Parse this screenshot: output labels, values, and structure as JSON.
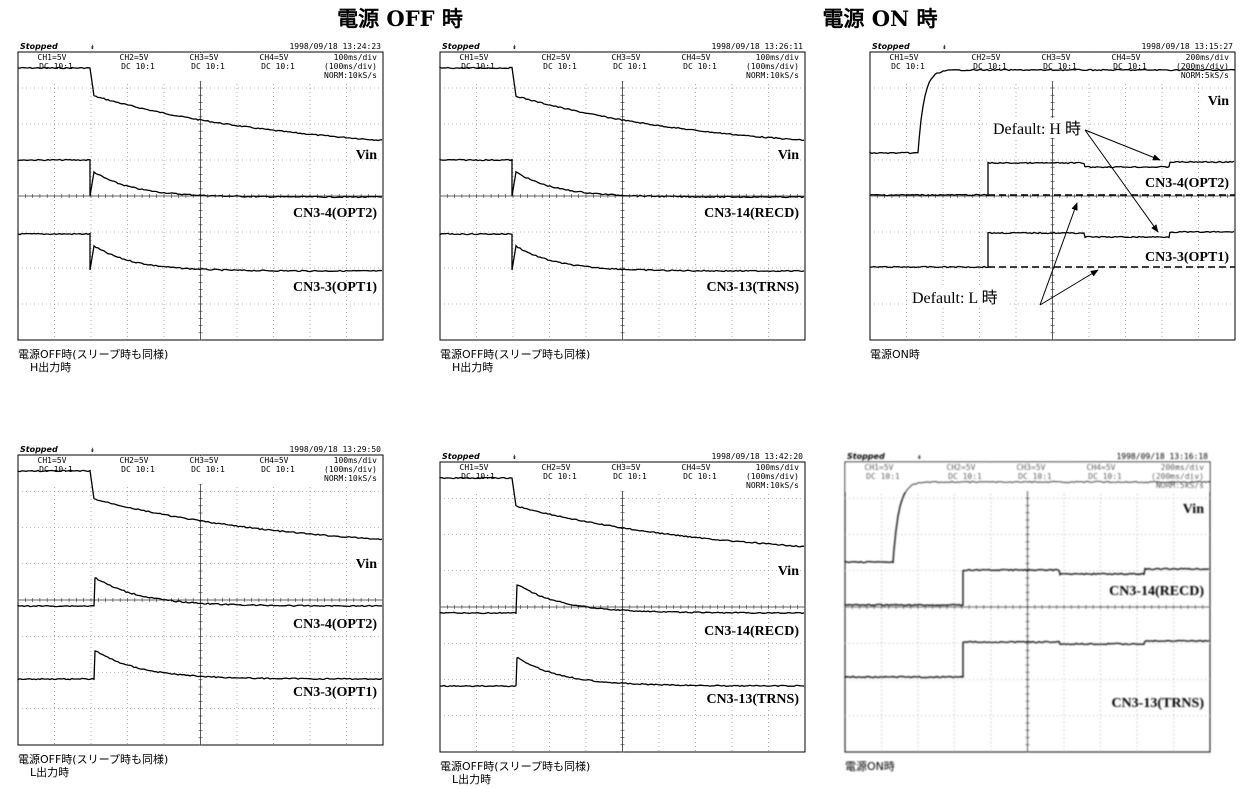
{
  "headings": [
    "電源 OFF 時",
    "電源 ON 時"
  ],
  "panels": [
    {
      "status": "Stopped",
      "timestamp": "1998/09/18 13:24:23",
      "channels": [
        {
          "scale": "CH1=5V",
          "probe": "DC 10:1"
        },
        {
          "scale": "CH2=5V",
          "probe": "DC 10:1"
        },
        {
          "scale": "CH3=5V",
          "probe": "DC 10:1"
        },
        {
          "scale": "CH4=5V",
          "probe": "DC 10:1"
        }
      ],
      "timebase": [
        "100ms/div",
        "(100ms/div)",
        "NORM:10kS/s"
      ],
      "signals": [
        "Vin",
        "CN3-4(OPT2)",
        "CN3-3(OPT1)"
      ],
      "caption": [
        "電源OFF時(スリープ時も同様)",
        "H出力時"
      ]
    },
    {
      "status": "Stopped",
      "timestamp": "1998/09/18 13:26:11",
      "channels": [
        {
          "scale": "CH1=5V",
          "probe": "DC 10:1"
        },
        {
          "scale": "CH2=5V",
          "probe": "DC 10:1"
        },
        {
          "scale": "CH3=5V",
          "probe": "DC 10:1"
        },
        {
          "scale": "CH4=5V",
          "probe": "DC 10:1"
        }
      ],
      "timebase": [
        "100ms/div",
        "(100ms/div)",
        "NORM:10kS/s"
      ],
      "signals": [
        "Vin",
        "CN3-14(RECD)",
        "CN3-13(TRNS)"
      ],
      "caption": [
        "電源OFF時(スリープ時も同様)",
        "H出力時"
      ]
    },
    {
      "status": "Stopped",
      "timestamp": "1998/09/18 13:15:27",
      "channels": [
        {
          "scale": "CH1=5V",
          "probe": "DC 10:1"
        },
        {
          "scale": "CH2=5V",
          "probe": "DC 10:1"
        },
        {
          "scale": "CH3=5V",
          "probe": "DC 10:1"
        },
        {
          "scale": "CH4=5V",
          "probe": "DC 10:1"
        }
      ],
      "timebase": [
        "200ms/div",
        "(200ms/div)",
        "NORM:5kS/s"
      ],
      "signals": [
        "Vin",
        "CN3-4(OPT2)",
        "CN3-3(OPT1)"
      ],
      "annotations": [
        "Default: H 時",
        "Default: L 時"
      ],
      "caption": [
        "電源ON時"
      ]
    },
    {
      "status": "Stopped",
      "timestamp": "1998/09/18 13:29:50",
      "channels": [
        {
          "scale": "CH1=5V",
          "probe": "DC 10:1"
        },
        {
          "scale": "CH2=5V",
          "probe": "DC 10:1"
        },
        {
          "scale": "CH3=5V",
          "probe": "DC 10:1"
        },
        {
          "scale": "CH4=5V",
          "probe": "DC 10:1"
        }
      ],
      "timebase": [
        "100ms/div",
        "(100ms/div)",
        "NORM:10kS/s"
      ],
      "signals": [
        "Vin",
        "CN3-4(OPT2)",
        "CN3-3(OPT1)"
      ],
      "caption": [
        "電源OFF時(スリープ時も同様)",
        "L出力時"
      ]
    },
    {
      "status": "Stopped",
      "timestamp": "1998/09/18 13:42:20",
      "channels": [
        {
          "scale": "CH1=5V",
          "probe": "DC 10:1"
        },
        {
          "scale": "CH2=5V",
          "probe": "DC 10:1"
        },
        {
          "scale": "CH3=5V",
          "probe": "DC 10:1"
        },
        {
          "scale": "CH4=5V",
          "probe": "DC 10:1"
        }
      ],
      "timebase": [
        "100ms/div",
        "(100ms/div)",
        "NORM:10kS/s"
      ],
      "signals": [
        "Vin",
        "CN3-14(RECD)",
        "CN3-13(TRNS)"
      ],
      "caption": [
        "電源OFF時(スリープ時も同様)",
        "L出力時"
      ]
    },
    {
      "status": "Stopped",
      "timestamp": "1998/09/18 13:16:18",
      "channels": [
        {
          "scale": "CH1=5V",
          "probe": "DC 10:1"
        },
        {
          "scale": "CH2=5V",
          "probe": "DC 10:1"
        },
        {
          "scale": "CH3=5V",
          "probe": "DC 10:1"
        },
        {
          "scale": "CH4=5V",
          "probe": "DC 10:1"
        }
      ],
      "timebase": [
        "200ms/div",
        "(200ms/div)",
        "NORM:5kS/s"
      ],
      "signals": [
        "Vin",
        "CN3-14(RECD)",
        "CN3-13(TRNS)"
      ],
      "caption": [
        "電源ON時"
      ]
    }
  ]
}
